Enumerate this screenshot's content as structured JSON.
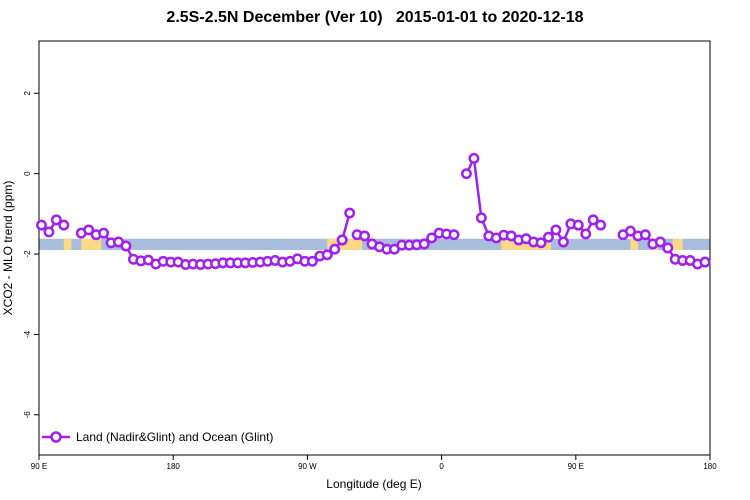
{
  "chart_data": {
    "type": "line",
    "title": "2.5S-2.5N December (Ver 10)   2015-01-01 to 2020-12-18",
    "xlabel": "Longitude (deg E)",
    "ylabel": "XCO2 - MLO trend (ppm)",
    "xlim": [
      -90,
      180
    ],
    "ylim": [
      -7,
      3.3
    ],
    "x_ticks": [
      {
        "value": -90,
        "label": "90 E"
      },
      {
        "value": -36,
        "label": "180"
      },
      {
        "value": 18,
        "label": "90 W"
      },
      {
        "value": 72,
        "label": "0"
      },
      {
        "value": 126,
        "label": "90 E"
      },
      {
        "value": 180,
        "label": "180"
      }
    ],
    "y_ticks": [
      {
        "value": -6,
        "label": "-6"
      },
      {
        "value": -4,
        "label": "-4"
      },
      {
        "value": -2,
        "label": "-2"
      },
      {
        "value": 0,
        "label": "0"
      },
      {
        "value": 2,
        "label": "2"
      }
    ],
    "band": {
      "ymin": -1.9,
      "ymax": -1.62,
      "color": "#a9bedd",
      "land_color": "#fdd987",
      "land_segments": [
        [
          -80,
          -77
        ],
        [
          -73,
          -65
        ],
        [
          26,
          40
        ],
        [
          96,
          116
        ],
        [
          148,
          151
        ],
        [
          156,
          159
        ],
        [
          165,
          169
        ]
      ]
    },
    "series": [
      {
        "name": "Land (Nadir&Glint) and Ocean (Glint)",
        "color": "#a020f0",
        "segments": [
          {
            "x": [
              -89,
              -86,
              -83,
              -80
            ],
            "y": [
              -1.28,
              -1.45,
              -1.15,
              -1.28
            ]
          },
          {
            "x": [
              -73,
              -70,
              -67,
              -64,
              -61,
              -58,
              -55,
              -52,
              -49,
              -46,
              -43,
              -40,
              -37,
              -34,
              -31,
              -28,
              -25,
              -22,
              -19,
              -16,
              -13,
              -10,
              -7,
              -4,
              -1,
              2,
              5,
              8,
              11,
              14,
              17,
              20,
              23,
              26,
              29,
              32
            ],
            "y": [
              -1.48,
              -1.4,
              -1.52,
              -1.48,
              -1.72,
              -1.7,
              -1.8,
              -2.13,
              -2.17,
              -2.15,
              -2.25,
              -2.18,
              -2.2,
              -2.2,
              -2.26,
              -2.25,
              -2.26,
              -2.25,
              -2.24,
              -2.22,
              -2.22,
              -2.22,
              -2.22,
              -2.21,
              -2.2,
              -2.18,
              -2.16,
              -2.2,
              -2.18,
              -2.12,
              -2.18,
              -2.18,
              -2.05,
              -2.02,
              -1.88,
              -1.65
            ]
          },
          {
            "x": [
              32,
              35
            ],
            "y": [
              -1.65,
              -0.98
            ]
          },
          {
            "x": [
              38,
              41,
              44,
              47,
              50,
              53,
              56,
              59,
              62,
              65,
              68,
              71,
              74,
              77
            ],
            "y": [
              -1.52,
              -1.55,
              -1.75,
              -1.82,
              -1.88,
              -1.88,
              -1.78,
              -1.78,
              -1.77,
              -1.75,
              -1.6,
              -1.48,
              -1.5,
              -1.52
            ]
          },
          {
            "x": [
              82,
              85,
              88,
              91,
              94,
              97,
              100,
              103,
              106,
              109,
              112,
              115,
              118,
              121,
              124,
              127,
              130,
              133,
              136,
              139,
              142
            ],
            "y": [
              0.0,
              0.38,
              -1.1,
              -1.55,
              -1.6,
              -1.53,
              -1.55,
              -1.65,
              -1.62,
              -1.7,
              -1.72,
              -1.58,
              -1.4,
              -1.7,
              -1.25,
              -1.28,
              -1.5,
              -1.15,
              -1.28,
              null,
              null
            ]
          },
          {
            "x": [
              145,
              148,
              151,
              154,
              157,
              160,
              163,
              166,
              169,
              172,
              175,
              178
            ],
            "y": [
              -1.52,
              -1.43,
              -1.55,
              -1.52,
              -1.75,
              -1.7,
              -1.85,
              -2.13,
              -2.16,
              -2.16,
              -2.25,
              -2.2
            ]
          },
          {
            "x": [
              178,
              181
            ],
            "y": [
              -2.2,
              -2.2
            ]
          }
        ]
      }
    ],
    "grid": false,
    "legend_position": "bottom-left"
  }
}
